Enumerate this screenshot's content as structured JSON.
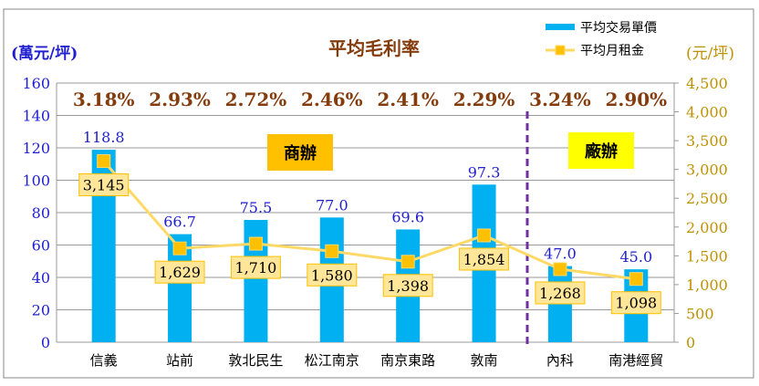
{
  "chart_data": {
    "type": "bar+line",
    "title": "平均毛利率",
    "ylabel_left": "(萬元/坪)",
    "ylabel_right": "(元/坪)",
    "categories": [
      "信義",
      "站前",
      "敦北民生",
      "松江南京",
      "南京東路",
      "敦南",
      "內科",
      "南港經貿"
    ],
    "margins": [
      "3.18%",
      "2.93%",
      "2.72%",
      "2.46%",
      "2.41%",
      "2.29%",
      "3.24%",
      "2.90%"
    ],
    "series": [
      {
        "name": "平均交易單價",
        "type": "bar",
        "axis": "left",
        "color": "#00B0F0",
        "values": [
          118.8,
          66.7,
          75.5,
          77.0,
          69.6,
          97.3,
          47.0,
          45.0
        ],
        "labels": [
          "118.8",
          "66.7",
          "75.5",
          "77.0",
          "69.6",
          "97.3",
          "47.0",
          "45.0"
        ]
      },
      {
        "name": "平均月租金",
        "type": "line",
        "axis": "right",
        "color": "#FFD966",
        "values": [
          3145,
          1629,
          1710,
          1580,
          1398,
          1854,
          1268,
          1098
        ],
        "labels": [
          "3,145",
          "1,629",
          "1,710",
          "1,580",
          "1,398",
          "1,854",
          "1,268",
          "1,098"
        ]
      }
    ],
    "ylim_left": [
      0,
      160
    ],
    "yticks_left": [
      "0",
      "20",
      "40",
      "60",
      "80",
      "100",
      "120",
      "140",
      "160"
    ],
    "ylim_right": [
      0,
      4500
    ],
    "yticks_right": [
      "0",
      "500",
      "1,000",
      "1,500",
      "2,000",
      "2,500",
      "3,000",
      "3,500",
      "4,000",
      "4,500"
    ],
    "grid": true,
    "legend": "top-right",
    "groups": [
      {
        "label": "商辦",
        "color": "#FFC000"
      },
      {
        "label": "廠辦",
        "color": "#FFFF00"
      }
    ]
  }
}
